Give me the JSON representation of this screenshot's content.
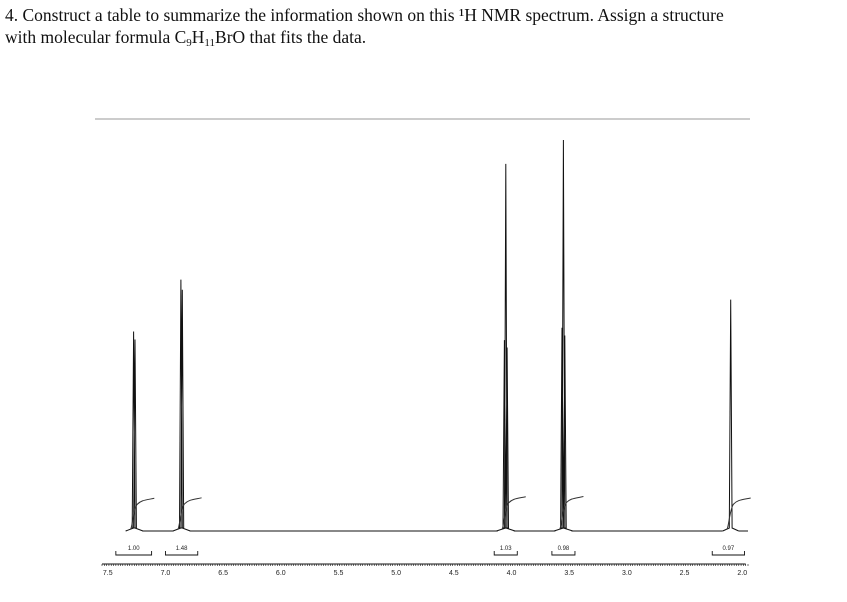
{
  "question": {
    "line1": "4. Construct a table to summarize the information shown on this ¹H NMR spectrum. Assign a structure",
    "line2_pre": "with molecular formula C",
    "sub_c": "9",
    "mid_h": "H",
    "sub_h": "11",
    "line2_post": "BrO that fits the data."
  },
  "chart_data": {
    "type": "line",
    "title": "",
    "xlabel": "",
    "ylabel": "",
    "x_unit": "ppm",
    "xlim": [
      7.55,
      1.95
    ],
    "ylim": [
      0,
      1
    ],
    "x_ticks": [
      "7.5",
      "7.0",
      "6.5",
      "6.0",
      "5.5",
      "5.0",
      "4.5",
      "4.0",
      "3.5",
      "3.0",
      "2.5",
      "2.0"
    ],
    "x_tick_values": [
      7.5,
      7.0,
      6.5,
      6.0,
      5.5,
      5.0,
      4.5,
      4.0,
      3.5,
      3.0,
      2.5,
      2.0
    ],
    "grid": false,
    "peaks": [
      {
        "shift": 7.27,
        "multiplicity": "doublet",
        "height": 0.5
      },
      {
        "shift": 6.86,
        "multiplicity": "doublet",
        "height": 0.63
      },
      {
        "shift": 4.05,
        "multiplicity": "triplet",
        "height": 0.92
      },
      {
        "shift": 3.55,
        "multiplicity": "triplet",
        "height": 0.98
      },
      {
        "shift": 2.1,
        "multiplicity": "singlet",
        "height": 0.58
      }
    ],
    "integrals": [
      {
        "label": "1.00",
        "from": 7.43,
        "to": 7.12,
        "shift": 7.27
      },
      {
        "label": "1.48",
        "from": 7.0,
        "to": 6.72,
        "shift": 6.86
      },
      {
        "label": "1.03",
        "from": 4.15,
        "to": 3.95,
        "shift": 4.05
      },
      {
        "label": "0.98",
        "from": 3.65,
        "to": 3.45,
        "shift": 3.55
      },
      {
        "label": "0.97",
        "from": 2.26,
        "to": 1.98,
        "shift": 2.1
      }
    ]
  }
}
